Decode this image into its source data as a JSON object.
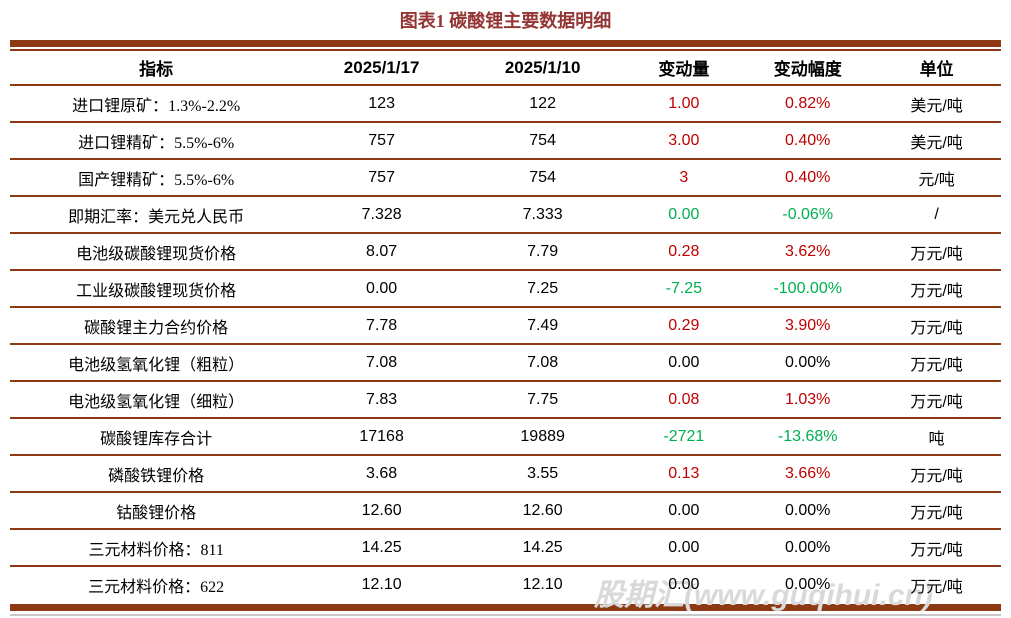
{
  "chart_data": {
    "type": "table",
    "title": "图表1 碳酸锂主要数据明细",
    "columns": [
      "指标",
      "2025/1/17",
      "2025/1/10",
      "变动量",
      "变动幅度",
      "单位"
    ],
    "rows": [
      [
        "进口锂原矿：1.3%-2.2%",
        "123",
        "122",
        "1.00",
        "0.82%",
        "美元/吨"
      ],
      [
        "进口锂精矿：5.5%-6%",
        "757",
        "754",
        "3.00",
        "0.40%",
        "美元/吨"
      ],
      [
        "国产锂精矿：5.5%-6%",
        "757",
        "754",
        "3",
        "0.40%",
        "元/吨"
      ],
      [
        "即期汇率：美元兑人民币",
        "7.328",
        "7.333",
        "0.00",
        "-0.06%",
        "/"
      ],
      [
        "电池级碳酸锂现货价格",
        "8.07",
        "7.79",
        "0.28",
        "3.62%",
        "万元/吨"
      ],
      [
        "工业级碳酸锂现货价格",
        "0.00",
        "7.25",
        "-7.25",
        "-100.00%",
        "万元/吨"
      ],
      [
        "碳酸锂主力合约价格",
        "7.78",
        "7.49",
        "0.29",
        "3.90%",
        "万元/吨"
      ],
      [
        "电池级氢氧化锂（粗粒）",
        "7.08",
        "7.08",
        "0.00",
        "0.00%",
        "万元/吨"
      ],
      [
        "电池级氢氧化锂（细粒）",
        "7.83",
        "7.75",
        "0.08",
        "1.03%",
        "万元/吨"
      ],
      [
        "碳酸锂库存合计",
        "17168",
        "19889",
        "-2721",
        "-13.68%",
        "吨"
      ],
      [
        "磷酸铁锂价格",
        "3.68",
        "3.55",
        "0.13",
        "3.66%",
        "万元/吨"
      ],
      [
        "钴酸锂价格",
        "12.60",
        "12.60",
        "0.00",
        "0.00%",
        "万元/吨"
      ],
      [
        "三元材料价格：811",
        "14.25",
        "14.25",
        "0.00",
        "0.00%",
        "万元/吨"
      ],
      [
        "三元材料价格：622",
        "12.10",
        "12.10",
        "0.00",
        "0.00%",
        "万元/吨"
      ]
    ],
    "change_trend": [
      "up",
      "up",
      "up",
      "down",
      "up",
      "down",
      "up",
      "flat",
      "up",
      "down",
      "up",
      "flat",
      "flat",
      "flat"
    ],
    "layout": {
      "grid": "horizontal-rules-only",
      "header_bold": true
    }
  },
  "watermark": {
    "text": "股期汇(www.guqihui.cn)"
  },
  "colors": {
    "up": "#C00000",
    "down": "#00B050",
    "flat": "#000000",
    "rule": "#8C3914",
    "title": "#943634",
    "wm": "#D9D9D9",
    "edge": "#C8C8C8"
  }
}
